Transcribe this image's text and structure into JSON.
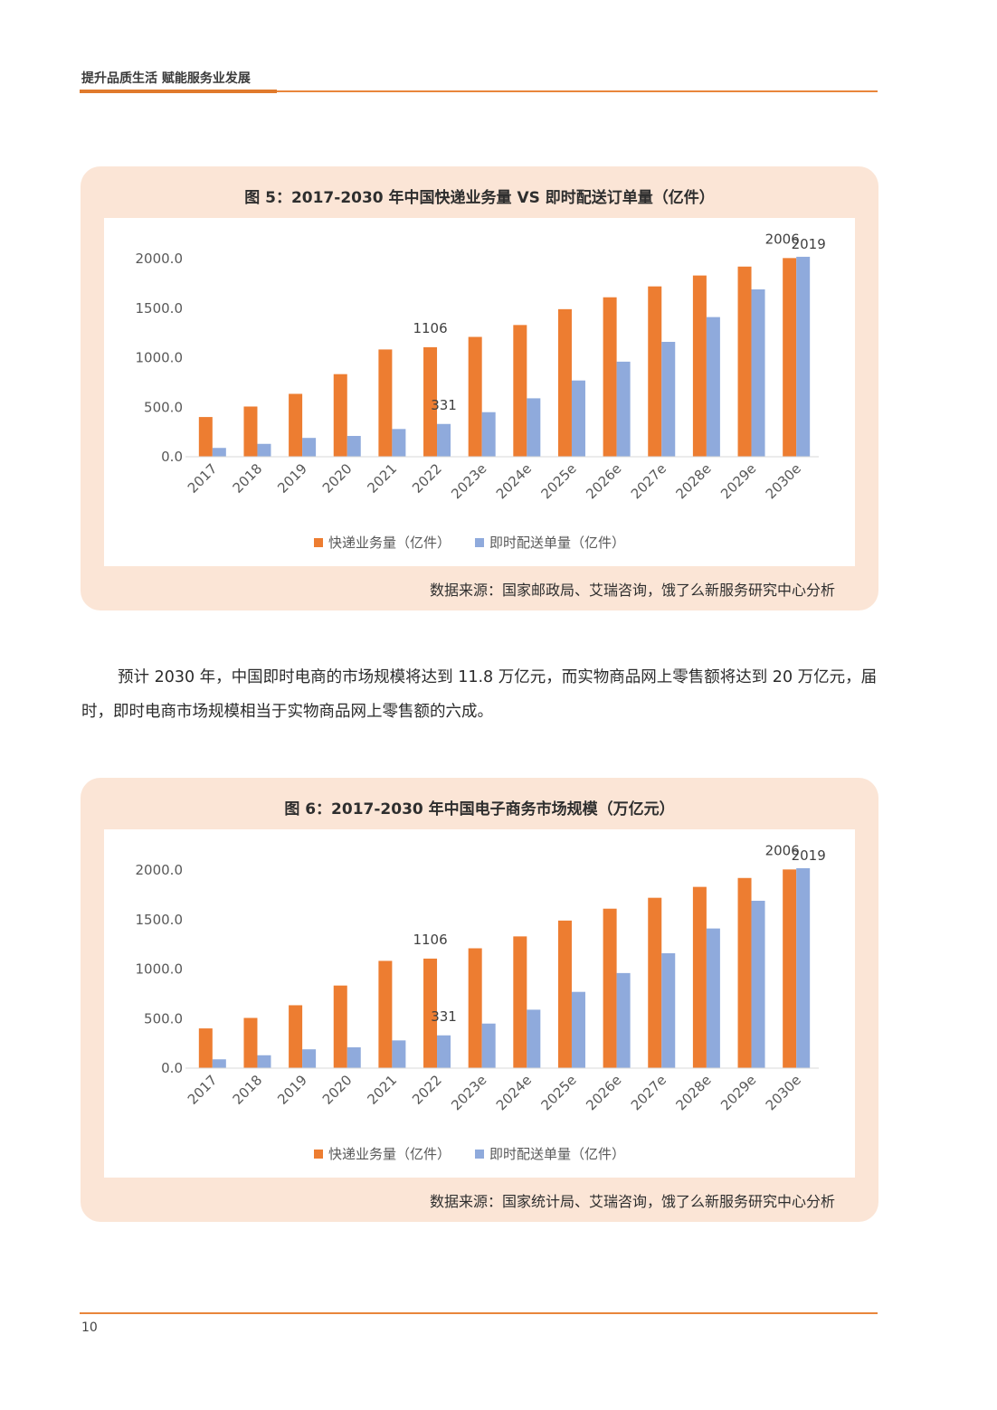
{
  "header": {
    "title": "提升品质生活 赋能服务业发展"
  },
  "figures": [
    {
      "title": "图 5：2017-2030 年中国快递业务量 VS 即时配送订单量（亿件）",
      "source": "数据来源：国家邮政局、艾瑞咨询，饿了么新服务研究中心分析"
    },
    {
      "title": "图 6：2017-2030 年中国电子商务市场规模（万亿元）",
      "source": "数据来源：国家统计局、艾瑞咨询，饿了么新服务研究中心分析"
    }
  ],
  "paragraph": "预计 2030 年，中国即时电商的市场规模将达到 11.8 万亿元，而实物商品网上零售额将达到 20 万亿元，届时，即时电商市场规模相当于实物商品网上零售额的六成。",
  "footer": {
    "page_number": "10"
  },
  "colors": {
    "series1": "#ed7d31",
    "series2": "#8faadc",
    "accent": "#e9863b"
  },
  "chart_data": [
    {
      "type": "bar",
      "categories": [
        "2017",
        "2018",
        "2019",
        "2020",
        "2021",
        "2022",
        "2023e",
        "2024e",
        "2025e",
        "2026e",
        "2027e",
        "2028e",
        "2029e",
        "2030e"
      ],
      "series": [
        {
          "name": "快递业务量（亿件）",
          "values": [
            401,
            507,
            635,
            834,
            1083,
            1106,
            1210,
            1330,
            1490,
            1610,
            1720,
            1830,
            1920,
            2006
          ],
          "labels": {
            "5": "1106",
            "13": "2006"
          }
        },
        {
          "name": "即时配送单量（亿件）",
          "values": [
            89,
            130,
            190,
            210,
            280,
            331,
            450,
            590,
            770,
            960,
            1160,
            1410,
            1690,
            2019
          ],
          "labels": {
            "5": "331",
            "13": "2019"
          }
        }
      ],
      "yticks": [
        "0.0",
        "500.0",
        "1000.0",
        "1500.0",
        "2000.0"
      ],
      "ylim": [
        0,
        2000
      ],
      "grid": false,
      "legend": "bottom"
    },
    {
      "type": "bar",
      "categories": [
        "2017",
        "2018",
        "2019",
        "2020",
        "2021",
        "2022",
        "2023e",
        "2024e",
        "2025e",
        "2026e",
        "2027e",
        "2028e",
        "2029e",
        "2030e"
      ],
      "series": [
        {
          "name": "快递业务量（亿件）",
          "values": [
            401,
            507,
            635,
            834,
            1083,
            1106,
            1210,
            1330,
            1490,
            1610,
            1720,
            1830,
            1920,
            2006
          ],
          "labels": {
            "5": "1106",
            "13": "2006"
          }
        },
        {
          "name": "即时配送单量（亿件）",
          "values": [
            89,
            130,
            190,
            210,
            280,
            331,
            450,
            590,
            770,
            960,
            1160,
            1410,
            1690,
            2019
          ],
          "labels": {
            "5": "331",
            "13": "2019"
          }
        }
      ],
      "yticks": [
        "0.0",
        "500.0",
        "1000.0",
        "1500.0",
        "2000.0"
      ],
      "ylim": [
        0,
        2000
      ],
      "grid": false,
      "legend": "bottom"
    }
  ]
}
